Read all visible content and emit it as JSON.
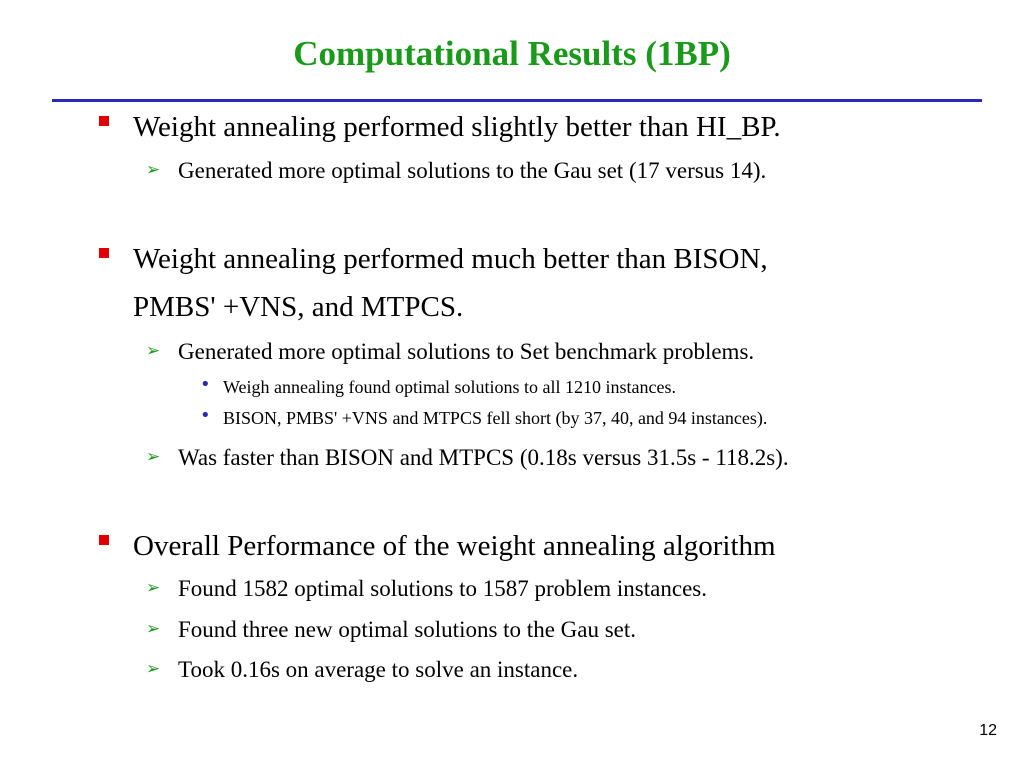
{
  "slide": {
    "title": "Computational Results (1BP)",
    "page_number": "12",
    "colors": {
      "title": "#1a9a1a",
      "rule": "#2a2ab8",
      "square_bullet": "#e00000",
      "arrow_bullet": "#1a9a1a",
      "dot_bullet": "#2a2ab8"
    }
  },
  "bullets": {
    "b1": {
      "text": "Weight annealing performed slightly better than HI_BP.",
      "subs": [
        "Generated more optimal solutions to the Gau set (17 versus 14)."
      ]
    },
    "b2": {
      "line1": "Weight annealing performed much better than BISON,",
      "line2": "PMBS' +VNS, and MTPCS.",
      "subs": [
        "Generated more optimal solutions to Set benchmark problems.",
        "Was faster than BISON and MTPCS (0.18s versus 31.5s - 118.2s)."
      ],
      "subsubs": [
        "Weigh annealing found optimal solutions to all 1210 instances.",
        "BISON, PMBS' +VNS and MTPCS fell short (by 37, 40, and 94 instances)."
      ]
    },
    "b3": {
      "text": "Overall Performance of the weight annealing algorithm",
      "subs": [
        "Found 1582 optimal solutions to 1587 problem instances.",
        "Found three new optimal solutions to the Gau set.",
        "Took 0.16s on average to solve an instance."
      ]
    }
  },
  "icons": {
    "level1": "square-bullet-icon",
    "level2": "arrow-bullet-icon",
    "level3": "dot-bullet-icon"
  }
}
